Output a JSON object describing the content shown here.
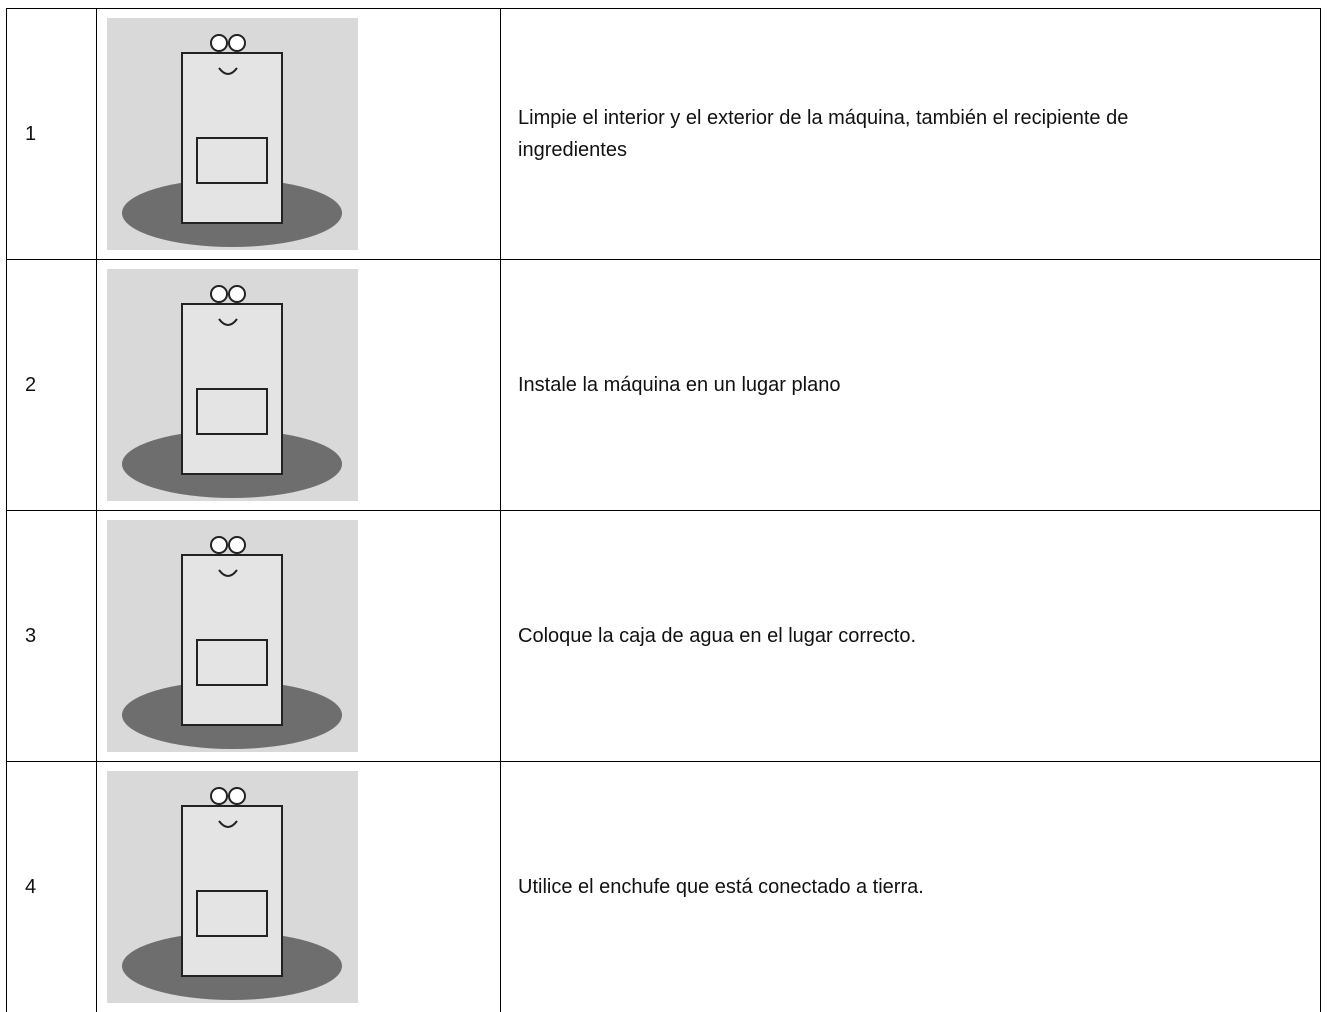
{
  "table": {
    "rows": [
      {
        "number": "1",
        "text": "Limpie el interior y el exterior de la máquina, también el recipiente de ingredientes"
      },
      {
        "number": "2",
        "text": "Instale la máquina en un lugar plano"
      },
      {
        "number": "3",
        "text": "Coloque la caja de agua en el lugar correcto."
      },
      {
        "number": "4",
        "text": "Utilice el enchufe que está conectado a tierra."
      }
    ]
  }
}
